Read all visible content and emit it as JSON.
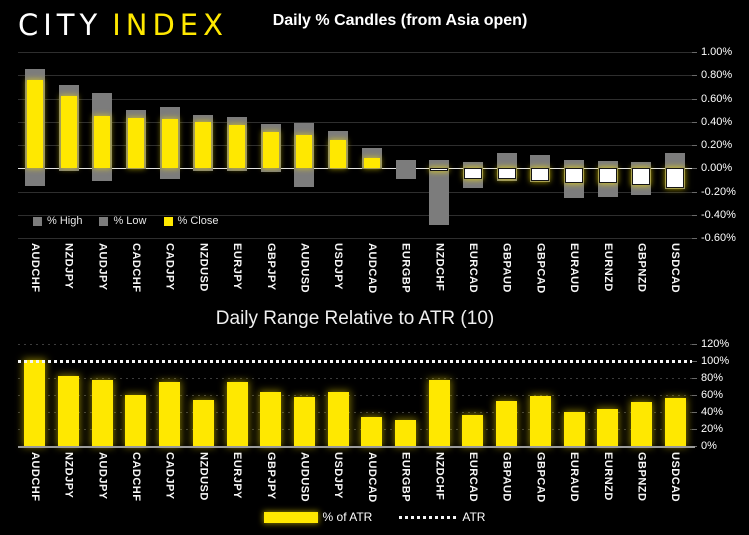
{
  "logo": {
    "city": "CITY",
    "index": "INDEX"
  },
  "colors": {
    "background": "#000000",
    "accent_yellow": "#FFE800",
    "candle_gray": "#7C7C7C",
    "negative_close_fill": "#FFFFFF",
    "grid": "#2E2E2E",
    "zero_line": "#E2E2E2",
    "text": "#FFFFFF"
  },
  "chart_data": [
    {
      "type": "bar",
      "subtype": "candle-from-open",
      "title": "Daily % Candles (from Asia open)",
      "categories": [
        "AUDCHF",
        "NZDJPY",
        "AUDJPY",
        "CADCHF",
        "CADJPY",
        "NZDUSD",
        "EURJPY",
        "GBPJPY",
        "AUDUSD",
        "USDJPY",
        "AUDCAD",
        "EURGBP",
        "NZDCHF",
        "EURCAD",
        "GBPAUD",
        "GBPCAD",
        "EURAUD",
        "EURNZD",
        "GBPNZD",
        "USDCAD"
      ],
      "series": [
        {
          "name": "% High",
          "color": "#7C7C7C",
          "values": [
            0.85,
            0.72,
            0.65,
            0.5,
            0.53,
            0.46,
            0.44,
            0.38,
            0.39,
            0.32,
            0.17,
            0.07,
            0.07,
            0.05,
            0.13,
            0.11,
            0.07,
            0.06,
            0.05,
            0.13
          ]
        },
        {
          "name": "% Low",
          "color": "#7C7C7C",
          "values": [
            -0.15,
            -0.02,
            -0.11,
            -0.01,
            -0.09,
            -0.02,
            -0.02,
            -0.03,
            -0.16,
            -0.01,
            -0.01,
            -0.09,
            -0.49,
            -0.17,
            -0.11,
            -0.12,
            -0.26,
            -0.25,
            -0.23,
            -0.18
          ]
        },
        {
          "name": "% Close",
          "color": "#FFE800",
          "values": [
            0.76,
            0.62,
            0.45,
            0.43,
            0.42,
            0.4,
            0.37,
            0.31,
            0.29,
            0.24,
            0.09,
            0.0,
            -0.02,
            -0.09,
            -0.09,
            -0.11,
            -0.13,
            -0.13,
            -0.14,
            -0.17
          ]
        }
      ],
      "ylim": [
        -0.6,
        1.0
      ],
      "ytick_step": 0.2,
      "yticks": [
        "1.00%",
        "0.80%",
        "0.60%",
        "0.40%",
        "0.20%",
        "0.00%",
        "-0.20%",
        "-0.40%",
        "-0.60%"
      ],
      "grid": true,
      "legend_position": "bottom-left",
      "legend": [
        "% High",
        "% Low",
        "% Close"
      ]
    },
    {
      "type": "bar",
      "title": "Daily Range Relative to ATR (10)",
      "categories": [
        "AUDCHF",
        "NZDJPY",
        "AUDJPY",
        "CADCHF",
        "CADJPY",
        "NZDUSD",
        "EURJPY",
        "GBPJPY",
        "AUDUSD",
        "USDJPY",
        "AUDCAD",
        "EURGBP",
        "NZDCHF",
        "EURCAD",
        "GBPAUD",
        "GBPCAD",
        "EURAUD",
        "EURNZD",
        "GBPNZD",
        "USDCAD"
      ],
      "series": [
        {
          "name": "% of ATR",
          "color": "#FFE800",
          "values": [
            101,
            82,
            78,
            60,
            75,
            54,
            75,
            64,
            58,
            63,
            34,
            31,
            78,
            36,
            53,
            59,
            40,
            43,
            52,
            56
          ]
        }
      ],
      "reference_line": {
        "name": "ATR",
        "value": 100,
        "style": "dotted",
        "color": "#F4F4F4"
      },
      "ylim": [
        0,
        120
      ],
      "ytick_step": 20,
      "yticks": [
        "120%",
        "100%",
        "80%",
        "60%",
        "40%",
        "20%",
        "0%"
      ],
      "grid": true,
      "legend_position": "bottom-center",
      "legend": [
        "% of ATR",
        "ATR"
      ]
    }
  ]
}
